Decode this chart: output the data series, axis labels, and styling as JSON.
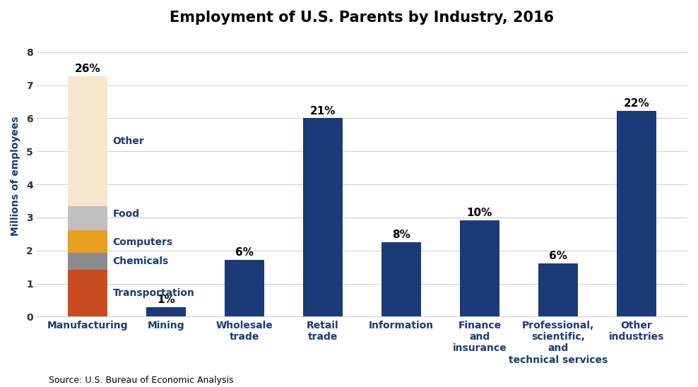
{
  "title": "Employment of U.S. Parents by Industry, 2016",
  "ylabel": "Millions of employees",
  "source": "Source: U.S. Bureau of Economic Analysis",
  "categories": [
    "Manufacturing",
    "Mining",
    "Wholesale\ntrade",
    "Retail\ntrade",
    "Information",
    "Finance\nand\ninsurance",
    "Professional,\nscientific,\nand\ntechnical services",
    "Other\nindustries"
  ],
  "percentages": [
    "26%",
    "1%",
    "6%",
    "21%",
    "8%",
    "10%",
    "6%",
    "22%"
  ],
  "solid_bar_color": "#1a3a78",
  "solid_bar_values": [
    null,
    0.28,
    1.72,
    6.0,
    2.25,
    2.92,
    1.62,
    6.22
  ],
  "manufacturing_segments": {
    "Transportation": 1.42,
    "Chemicals": 0.52,
    "Computers": 0.68,
    "Food": 0.72,
    "Other": 3.94
  },
  "manufacturing_colors": {
    "Transportation": "#c94c1e",
    "Chemicals": "#8c8c8c",
    "Computers": "#e8a020",
    "Food": "#c0c0c0",
    "Other": "#f5e6cc"
  },
  "manufacturing_segment_midpoints": {
    "Transportation": 0.71,
    "Chemicals": 1.68,
    "Computers": 2.26,
    "Food": 3.1,
    "Other": 5.3
  },
  "ylim": [
    0,
    8.5
  ],
  "yticks": [
    0,
    1,
    2,
    3,
    4,
    5,
    6,
    7,
    8
  ],
  "background_color": "#ffffff",
  "grid_color": "#d0d0d0",
  "title_fontsize": 15,
  "axis_label_fontsize": 10,
  "tick_fontsize": 10,
  "pct_fontsize": 11,
  "segment_label_fontsize": 10,
  "source_fontsize": 9,
  "tick_label_color": "#333333",
  "xlabel_color": "#1a3a78",
  "ylabel_color": "#1a3a78",
  "annotation_color": "#1a3a78"
}
